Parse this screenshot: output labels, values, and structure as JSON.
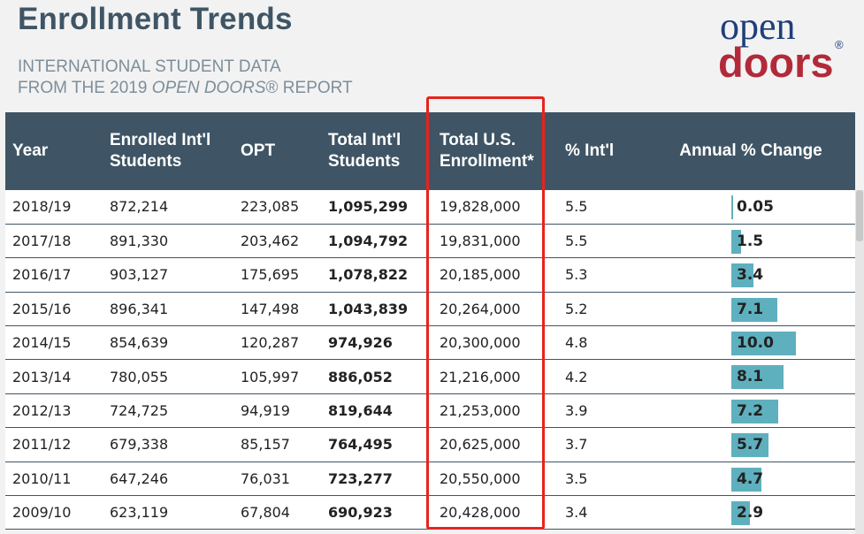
{
  "header": {
    "title": "Enrollment Trends",
    "subtitle_line1": "INTERNATIONAL STUDENT DATA",
    "subtitle_line2_pre": "FROM THE 2019 ",
    "subtitle_line2_em": "OPEN DOORS",
    "subtitle_line2_post": "® REPORT"
  },
  "logo": {
    "top": "open",
    "bottom": "doors",
    "reg": "®"
  },
  "table": {
    "columns": [
      "Year",
      "Enrolled Int'l Students",
      "OPT",
      "Total Int'l Students",
      "Total U.S. Enrollment*",
      "% Int'l",
      "Annual % Change"
    ],
    "rows": [
      {
        "year": "2018/19",
        "enrolled": "872,214",
        "opt": "223,085",
        "total_intl": "1,095,299",
        "total_us": "19,828,000",
        "pct_intl": "5.5",
        "change": "0.05",
        "change_value": 0.05
      },
      {
        "year": "2017/18",
        "enrolled": "891,330",
        "opt": "203,462",
        "total_intl": "1,094,792",
        "total_us": "19,831,000",
        "pct_intl": "5.5",
        "change": "1.5",
        "change_value": 1.5
      },
      {
        "year": "2016/17",
        "enrolled": "903,127",
        "opt": "175,695",
        "total_intl": "1,078,822",
        "total_us": "20,185,000",
        "pct_intl": "5.3",
        "change": "3.4",
        "change_value": 3.4
      },
      {
        "year": "2015/16",
        "enrolled": "896,341",
        "opt": "147,498",
        "total_intl": "1,043,839",
        "total_us": "20,264,000",
        "pct_intl": "5.2",
        "change": "7.1",
        "change_value": 7.1
      },
      {
        "year": "2014/15",
        "enrolled": "854,639",
        "opt": "120,287",
        "total_intl": "974,926",
        "total_us": "20,300,000",
        "pct_intl": "4.8",
        "change": "10.0",
        "change_value": 10.0
      },
      {
        "year": "2013/14",
        "enrolled": "780,055",
        "opt": "105,997",
        "total_intl": "886,052",
        "total_us": "21,216,000",
        "pct_intl": "4.2",
        "change": "8.1",
        "change_value": 8.1
      },
      {
        "year": "2012/13",
        "enrolled": "724,725",
        "opt": "94,919",
        "total_intl": "819,644",
        "total_us": "21,253,000",
        "pct_intl": "3.9",
        "change": "7.2",
        "change_value": 7.2
      },
      {
        "year": "2011/12",
        "enrolled": "679,338",
        "opt": "85,157",
        "total_intl": "764,495",
        "total_us": "20,625,000",
        "pct_intl": "3.7",
        "change": "5.7",
        "change_value": 5.7
      },
      {
        "year": "2010/11",
        "enrolled": "647,246",
        "opt": "76,031",
        "total_intl": "723,277",
        "total_us": "20,550,000",
        "pct_intl": "3.5",
        "change": "4.7",
        "change_value": 4.7
      },
      {
        "year": "2009/10",
        "enrolled": "623,119",
        "opt": "67,804",
        "total_intl": "690,923",
        "total_us": "20,428,000",
        "pct_intl": "3.4",
        "change": "2.9",
        "change_value": 2.9
      }
    ]
  },
  "colors": {
    "header_bg": "#3f5565",
    "bar": "#5fb0be",
    "highlight": "#e8231c",
    "logo_blue": "#1f3f7a",
    "logo_red": "#b22a3a"
  }
}
